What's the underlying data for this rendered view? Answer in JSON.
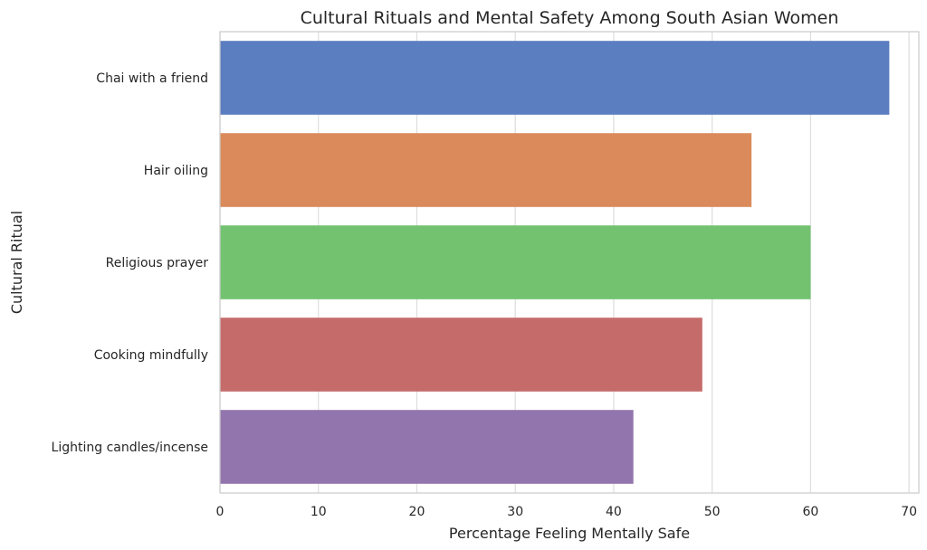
{
  "chart_data": {
    "type": "bar",
    "orientation": "horizontal",
    "title": "Cultural Rituals and Mental Safety Among South Asian Women",
    "xlabel": "Percentage Feeling Mentally Safe",
    "ylabel": "Cultural Ritual",
    "categories": [
      "Chai with a friend",
      "Hair oiling",
      "Religious prayer",
      "Cooking mindfully",
      "Lighting candles/incense"
    ],
    "values": [
      68,
      54,
      60,
      49,
      42
    ],
    "colors": [
      "#5b7ec1",
      "#da8a5b",
      "#73c26f",
      "#c56c6b",
      "#9375ad"
    ],
    "xlim": [
      0,
      71
    ],
    "xticks": [
      0,
      10,
      20,
      30,
      40,
      50,
      60,
      70
    ],
    "grid": true,
    "legend": "none"
  }
}
